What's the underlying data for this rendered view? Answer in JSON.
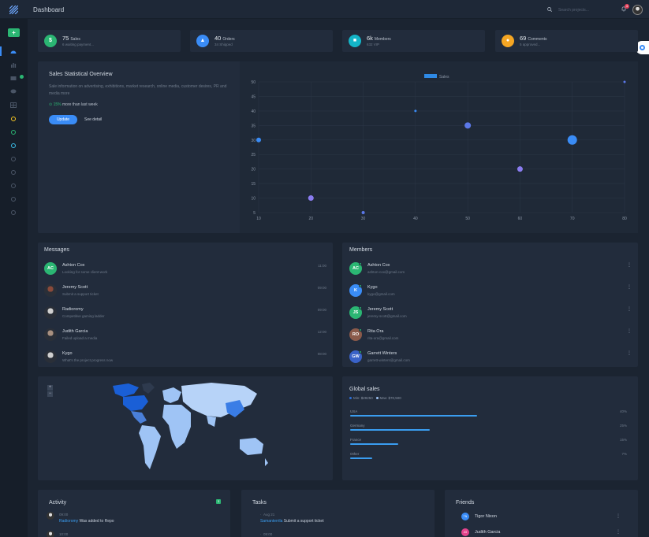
{
  "header": {
    "title": "Dashboard",
    "search_placeholder": "Search projects...",
    "notification_count": "4"
  },
  "stats": [
    {
      "value": "75",
      "label": "Sales",
      "sub": "6 waiting payment...",
      "icon": "$",
      "color": "#2bb673"
    },
    {
      "value": "40",
      "label": "Orders",
      "sub": "34 Shipped",
      "icon": "▲",
      "color": "#3a8cf6"
    },
    {
      "value": "6k",
      "label": "Members",
      "sub": "632 VIP",
      "icon": "■",
      "color": "#14b5c8"
    },
    {
      "value": "69",
      "label": "Comments",
      "sub": "5 approved...",
      "icon": "●",
      "color": "#f5a623"
    }
  ],
  "overview": {
    "title": "Sales Statistical Overview",
    "description": "Sale information on advertising, exhibitions, market research, online media, customer desires, PR and media more",
    "change": "15%",
    "change_text": "more than last week",
    "update_label": "Update",
    "detail_label": "See detail"
  },
  "chart_data": {
    "type": "scatter",
    "legend": "Sales",
    "xlim": [
      10,
      80
    ],
    "ylim": [
      5,
      50
    ],
    "x_ticks": [
      "10",
      "20",
      "30",
      "40",
      "50",
      "60",
      "70",
      "80"
    ],
    "y_ticks": [
      "5",
      "10",
      "15",
      "20",
      "25",
      "30",
      "35",
      "40",
      "45",
      "50"
    ],
    "points": [
      {
        "x": 10,
        "y": 30,
        "size": 3,
        "color": "#3a8cf6"
      },
      {
        "x": 20,
        "y": 10,
        "size": 3.5,
        "color": "#8a7cf0"
      },
      {
        "x": 30,
        "y": 5,
        "size": 2,
        "color": "#5b78e8"
      },
      {
        "x": 40,
        "y": 40,
        "size": 1.5,
        "color": "#3a8cf6"
      },
      {
        "x": 50,
        "y": 35,
        "size": 4,
        "color": "#5b78e8"
      },
      {
        "x": 60,
        "y": 20,
        "size": 3.5,
        "color": "#8a7cf0"
      },
      {
        "x": 70,
        "y": 30,
        "size": 6,
        "color": "#3a8cf6"
      },
      {
        "x": 80,
        "y": 50,
        "size": 1.5,
        "color": "#5b78e8"
      }
    ]
  },
  "messages": {
    "title": "Messages",
    "items": [
      {
        "name": "Ashton Cox",
        "text": "Looking for some client-work",
        "time": "11:00",
        "initials": "AC",
        "color": "#2bb673"
      },
      {
        "name": "Jeremy Scott",
        "text": "Submit a support ticket",
        "time": "09:00",
        "initials": "",
        "color": "#8a4a3a"
      },
      {
        "name": "Radioromy",
        "text": "Competitive gaming ladder",
        "time": "09:00",
        "initials": "",
        "color": "#d0d0d0"
      },
      {
        "name": "Judith Garcia",
        "text": "Failed upload a media",
        "time": "12:00",
        "initials": "",
        "color": "#a89080"
      },
      {
        "name": "Kygo",
        "text": "What's the project progress now",
        "time": "08:00",
        "initials": "",
        "color": "#cfcfcf"
      }
    ]
  },
  "members": {
    "title": "Members",
    "items": [
      {
        "name": "Ashton Cox",
        "email": "ashton-cox@gmail.com",
        "initials": "AC",
        "color": "#2bb673"
      },
      {
        "name": "Kygo",
        "email": "kygo@gmail.com",
        "initials": "K",
        "color": "#3a8cf6"
      },
      {
        "name": "Jeremy Scott",
        "email": "jeremy-scott@gmail.com",
        "initials": "JS",
        "color": "#2bb673"
      },
      {
        "name": "Rita Ora",
        "email": "rita-ora@gmail.com",
        "initials": "RO",
        "color": "#8a5a4a"
      },
      {
        "name": "Garrett Winters",
        "email": "garrett-winters@gmail.com",
        "initials": "GW",
        "color": "#3a62c8"
      }
    ]
  },
  "map": {
    "zoom_in": "+",
    "zoom_out": "−"
  },
  "global_sales": {
    "title": "Global sales",
    "legend_min": "Min: $29250",
    "legend_max": "Max: $70,500",
    "countries": [
      {
        "name": "USA",
        "percent": "40%",
        "value": 0.4
      },
      {
        "name": "Germany",
        "percent": "25%",
        "value": 0.25
      },
      {
        "name": "France",
        "percent": "15%",
        "value": 0.15
      },
      {
        "name": "Other",
        "percent": "7%",
        "value": 0.07
      }
    ]
  },
  "activity": {
    "title": "Activity",
    "badge": "3",
    "items": [
      {
        "time": "09:00",
        "who": "Radioromy",
        "text": "Was added to Repo"
      },
      {
        "time": "10:00",
        "who": "",
        "text": ""
      }
    ]
  },
  "tasks": {
    "title": "Tasks",
    "items": [
      {
        "time": "Aug 21",
        "who": "Samanterrila",
        "text": "Submit a support ticket"
      },
      {
        "time": "09:00",
        "who": "",
        "text": ""
      }
    ]
  },
  "friends": {
    "title": "Friends",
    "items": [
      {
        "name": "Tigor Nixon",
        "initials": "TN",
        "color": "#3a8cf6"
      },
      {
        "name": "Judith Garcia",
        "initials": "JG",
        "color": "#e3438c"
      }
    ]
  }
}
